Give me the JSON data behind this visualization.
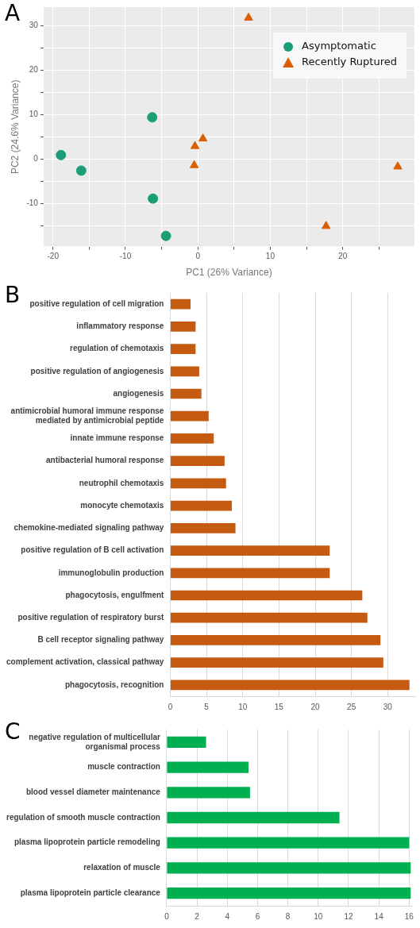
{
  "chart_data": [
    {
      "type": "scatter",
      "annotations": [
        "A"
      ],
      "xlabel": "PC1 (26% Variance)",
      "ylabel": "PC2 (24.6% Variance)",
      "legend": "top right",
      "grid": true,
      "xlim": [
        -21.3,
        29.9
      ],
      "ylim": [
        -19.7,
        34.2
      ],
      "xticks": [
        -20,
        {
          "value": -15,
          "label": null
        },
        -10,
        {
          "value": -5,
          "label": null
        },
        0,
        {
          "value": 5,
          "label": null
        },
        10,
        {
          "value": 15,
          "label": null
        },
        20,
        {
          "value": 25,
          "label": null
        }
      ],
      "yticks": [
        {
          "value": -15,
          "label": null
        },
        -10,
        {
          "value": -5,
          "label": null
        },
        0,
        {
          "value": 5,
          "label": null
        },
        10,
        {
          "value": 15,
          "label": null
        },
        20,
        {
          "value": 25,
          "label": null
        },
        30
      ],
      "series": [
        {
          "name": "Asymptomatic",
          "color": "#1b9e77",
          "marker": "circle",
          "x": [
            -18.9,
            -16.1,
            -6.3,
            -6.2,
            -4.4
          ],
          "values": [
            0.9,
            -2.6,
            9.4,
            -8.9,
            -17.3
          ]
        },
        {
          "name": "Recently Ruptured",
          "color": "#d95f02",
          "marker": "triangle",
          "x": [
            7.0,
            0.7,
            -0.4,
            -0.5,
            17.7,
            27.6
          ],
          "values": [
            31.8,
            4.6,
            2.9,
            -1.4,
            -15.1,
            -1.7
          ]
        }
      ]
    },
    {
      "type": "bar",
      "orientation": "horizontal",
      "annotations": [
        "B"
      ],
      "grid": "x",
      "color": "#c55a11",
      "xlim": [
        0,
        33.8
      ],
      "xticks": [
        0,
        5,
        10,
        15,
        20,
        25,
        30
      ],
      "categories": [
        "positive regulation of cell migration",
        "inflammatory response",
        "regulation of chemotaxis",
        "positive regulation of angiogenesis",
        "angiogenesis",
        "antimicrobial humoral immune response mediated by antimicrobial peptide",
        "innate immune response",
        "antibacterial humoral response",
        "neutrophil chemotaxis",
        "monocyte chemotaxis",
        "chemokine-mediated signaling pathway",
        "positive regulation of B cell activation",
        "immunoglobulin production",
        "phagocytosis, engulfment",
        "positive regulation of respiratory burst",
        "B cell receptor signaling pathway",
        "complement activation, classical pathway",
        "phagocytosis, recognition"
      ],
      "values": [
        2.8,
        3.5,
        3.5,
        4.0,
        4.3,
        5.3,
        6.0,
        7.5,
        7.7,
        8.5,
        9.0,
        22.0,
        22.0,
        26.5,
        27.2,
        29.0,
        29.4,
        33.0
      ]
    },
    {
      "type": "bar",
      "orientation": "horizontal",
      "annotations": [
        "C"
      ],
      "grid": "x",
      "color": "#00b050",
      "xlim": [
        0,
        16.2
      ],
      "xticks": [
        0,
        2,
        4,
        6,
        8,
        10,
        12,
        14,
        16
      ],
      "categories": [
        "negative regulation of multicellular organismal process",
        "muscle contraction",
        "blood vessel diameter maintenance",
        "regulation of smooth muscle contraction",
        "plasma lipoprotein particle remodeling",
        "relaxation of muscle",
        "plasma lipoprotein particle clearance"
      ],
      "values": [
        2.6,
        5.4,
        5.5,
        11.4,
        16.0,
        16.1,
        16.1
      ]
    }
  ]
}
